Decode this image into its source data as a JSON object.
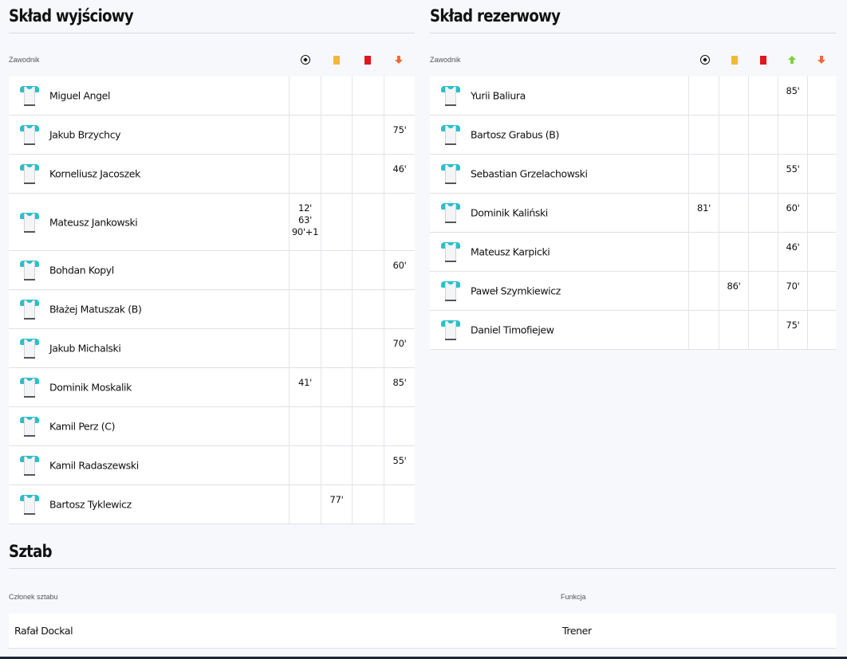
{
  "starting": {
    "title": "Skład wyjściowy",
    "header_label": "Zawodnik",
    "header_icons": [
      "soccer-ball-icon",
      "yellow-card-icon",
      "red-card-icon",
      "sub-out-arrow-icon"
    ],
    "players": [
      {
        "name": "Miguel Angel",
        "goals": "",
        "yellow": "",
        "red": "",
        "out": ""
      },
      {
        "name": "Jakub Brzychcy",
        "goals": "",
        "yellow": "",
        "red": "",
        "out": "75'"
      },
      {
        "name": "Korneliusz Jacoszek",
        "goals": "",
        "yellow": "",
        "red": "",
        "out": "46'"
      },
      {
        "name": "Mateusz Jankowski",
        "goals": "12'\n63'\n90'+1",
        "yellow": "",
        "red": "",
        "out": ""
      },
      {
        "name": "Bohdan Kopyl",
        "goals": "",
        "yellow": "",
        "red": "",
        "out": "60'"
      },
      {
        "name": "Błażej Matuszak (B)",
        "goals": "",
        "yellow": "",
        "red": "",
        "out": ""
      },
      {
        "name": "Jakub Michalski",
        "goals": "",
        "yellow": "",
        "red": "",
        "out": "70'"
      },
      {
        "name": "Dominik Moskalik",
        "goals": "41'",
        "yellow": "",
        "red": "",
        "out": "85'"
      },
      {
        "name": "Kamil Perz (C)",
        "goals": "",
        "yellow": "",
        "red": "",
        "out": ""
      },
      {
        "name": "Kamil Radaszewski",
        "goals": "",
        "yellow": "",
        "red": "",
        "out": "55'"
      },
      {
        "name": "Bartosz Tyklewicz",
        "goals": "",
        "yellow": "77'",
        "red": "",
        "out": ""
      }
    ]
  },
  "bench": {
    "title": "Skład rezerwowy",
    "header_label": "Zawodnik",
    "header_icons": [
      "soccer-ball-icon",
      "yellow-card-icon",
      "red-card-icon",
      "sub-in-arrow-icon",
      "sub-out-arrow-icon"
    ],
    "players": [
      {
        "name": "Yurii Baliura",
        "goals": "",
        "yellow": "",
        "red": "",
        "in": "85'",
        "out": ""
      },
      {
        "name": "Bartosz Grabus (B)",
        "goals": "",
        "yellow": "",
        "red": "",
        "in": "",
        "out": ""
      },
      {
        "name": "Sebastian Grzelachowski",
        "goals": "",
        "yellow": "",
        "red": "",
        "in": "55'",
        "out": ""
      },
      {
        "name": "Dominik Kaliński",
        "goals": "81'",
        "yellow": "",
        "red": "",
        "in": "60'",
        "out": ""
      },
      {
        "name": "Mateusz Karpicki",
        "goals": "",
        "yellow": "",
        "red": "",
        "in": "46'",
        "out": ""
      },
      {
        "name": "Paweł Szymkiewicz",
        "goals": "",
        "yellow": "86'",
        "red": "",
        "in": "70'",
        "out": ""
      },
      {
        "name": "Daniel Timofiejew",
        "goals": "",
        "yellow": "",
        "red": "",
        "in": "75'",
        "out": ""
      }
    ]
  },
  "staff": {
    "title": "Sztab",
    "col_member": "Członek sztabu",
    "col_function": "Funkcja",
    "members": [
      {
        "name": "Rafał Dockal",
        "function": "Trener"
      }
    ]
  },
  "colors": {
    "jersey_accent": "#2bbfc9",
    "yellow_card": "#f0b93a",
    "red_card": "#e3141d",
    "sub_in": "#7bd23a",
    "sub_out": "#f06a35"
  }
}
